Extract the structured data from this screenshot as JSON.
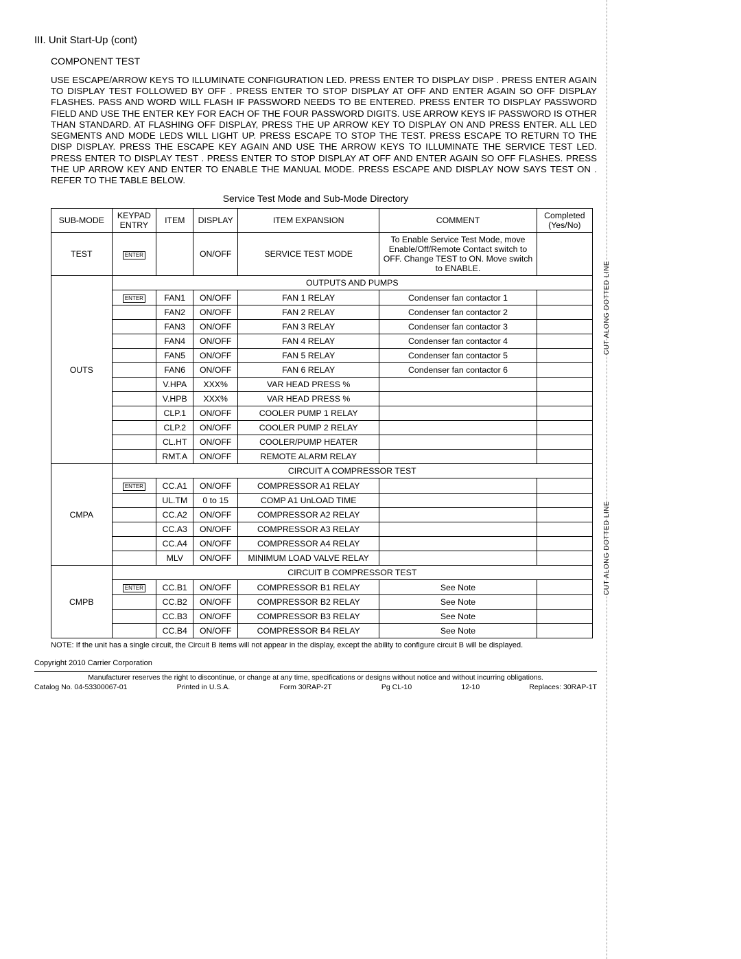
{
  "heading": "III.  Unit Start-Up (cont)",
  "subheading": "COMPONENT TEST",
  "instructions": "USE ESCAPE/ARROW KEYS TO ILLUMINATE CONFIGURATION LED. PRESS ENTER TO DISPLAY  DISP . PRESS ENTER AGAIN TO DISPLAY  TEST  FOLLOWED BY  OFF . PRESS ENTER TO STOP DISPLAY AT  OFF  AND ENTER AGAIN SO  OFF  DISPLAY FLASHES.  PASS  AND  WORD  WILL FLASH IF PASSWORD NEEDS TO BE ENTERED. PRESS ENTER TO DISPLAY PASSWORD FIELD AND USE THE ENTER KEY FOR EACH OF THE FOUR PASSWORD DIGITS. USE ARROW KEYS IF PASSWORD IS OTHER THAN STANDARD. AT FLASHING  OFF  DISPLAY, PRESS THE UP ARROW KEY TO DISPLAY  ON  AND PRESS ENTER. ALL LED SEGMENTS AND MODE LEDS WILL LIGHT UP. PRESS ESCAPE TO STOP THE TEST. PRESS ESCAPE TO RETURN TO THE  DISP  DISPLAY. PRESS THE ESCAPE KEY AGAIN AND USE THE ARROW KEYS TO ILLUMINATE THE SERVICE TEST LED. PRESS ENTER TO DISPLAY  TEST . PRESS ENTER TO STOP DISPLAY AT  OFF  AND ENTER AGAIN SO  OFF  FLASHES. PRESS THE UP ARROW KEY AND ENTER TO ENABLE THE MANUAL MODE. PRESS ESCAPE AND DISPLAY NOW SAYS  TEST   ON . REFER TO THE TABLE BELOW.",
  "table_caption": "Service Test Mode and Sub-Mode Directory",
  "headers": {
    "submode": "SUB-MODE",
    "keypad": "KEYPAD ENTRY",
    "item": "ITEM",
    "display": "DISPLAY",
    "expansion": "ITEM EXPANSION",
    "comment": "COMMENT",
    "completed": "Completed (Yes/No)"
  },
  "enter_label": "ENTER",
  "test_block": {
    "submode": "TEST",
    "display": "ON/OFF",
    "expansion": "SERVICE TEST MODE",
    "comment": "To Enable Service Test Mode, move Enable/Off/Remote Contact switch to OFF. Change TEST to ON. Move switch to ENABLE."
  },
  "outs": {
    "header": "OUTPUTS AND PUMPS",
    "submode": "OUTS",
    "rows": [
      {
        "keypad": true,
        "item": "FAN1",
        "display": "ON/OFF",
        "exp": "FAN 1 RELAY",
        "comment": "Condenser fan contactor 1"
      },
      {
        "keypad": false,
        "item": "FAN2",
        "display": "ON/OFF",
        "exp": "FAN 2 RELAY",
        "comment": "Condenser fan contactor 2"
      },
      {
        "keypad": false,
        "item": "FAN3",
        "display": "ON/OFF",
        "exp": "FAN 3 RELAY",
        "comment": "Condenser fan contactor 3"
      },
      {
        "keypad": false,
        "item": "FAN4",
        "display": "ON/OFF",
        "exp": "FAN 4 RELAY",
        "comment": "Condenser fan contactor 4"
      },
      {
        "keypad": false,
        "item": "FAN5",
        "display": "ON/OFF",
        "exp": "FAN 5 RELAY",
        "comment": "Condenser fan contactor 5"
      },
      {
        "keypad": false,
        "item": "FAN6",
        "display": "ON/OFF",
        "exp": "FAN 6 RELAY",
        "comment": "Condenser fan contactor 6"
      },
      {
        "keypad": false,
        "item": "V.HPA",
        "display": "XXX%",
        "exp": "VAR HEAD PRESS %",
        "comment": ""
      },
      {
        "keypad": false,
        "item": "V.HPB",
        "display": "XXX%",
        "exp": "VAR HEAD PRESS %",
        "comment": ""
      },
      {
        "keypad": false,
        "item": "CLP.1",
        "display": "ON/OFF",
        "exp": "COOLER PUMP 1 RELAY",
        "comment": ""
      },
      {
        "keypad": false,
        "item": "CLP.2",
        "display": "ON/OFF",
        "exp": "COOLER PUMP 2 RELAY",
        "comment": ""
      },
      {
        "keypad": false,
        "item": "CL.HT",
        "display": "ON/OFF",
        "exp": "COOLER/PUMP HEATER",
        "comment": ""
      },
      {
        "keypad": false,
        "item": "RMT.A",
        "display": "ON/OFF",
        "exp": "REMOTE ALARM RELAY",
        "comment": ""
      }
    ]
  },
  "cmpa": {
    "header": "CIRCUIT A COMPRESSOR TEST",
    "submode": "CMPA",
    "rows": [
      {
        "keypad": true,
        "item": "CC.A1",
        "display": "ON/OFF",
        "exp": "COMPRESSOR A1 RELAY",
        "comment": ""
      },
      {
        "keypad": false,
        "item": "UL.TM",
        "display": "0 to 15",
        "exp": "COMP A1 UnLOAD TIME",
        "comment": ""
      },
      {
        "keypad": false,
        "item": "CC.A2",
        "display": "ON/OFF",
        "exp": "COMPRESSOR A2 RELAY",
        "comment": ""
      },
      {
        "keypad": false,
        "item": "CC.A3",
        "display": "ON/OFF",
        "exp": "COMPRESSOR A3 RELAY",
        "comment": ""
      },
      {
        "keypad": false,
        "item": "CC.A4",
        "display": "ON/OFF",
        "exp": "COMPRESSOR A4 RELAY",
        "comment": ""
      },
      {
        "keypad": false,
        "item": "MLV",
        "display": "ON/OFF",
        "exp": "MINIMUM LOAD VALVE RELAY",
        "comment": ""
      }
    ]
  },
  "cmpb": {
    "header": "CIRCUIT B COMPRESSOR TEST",
    "submode": "CMPB",
    "rows": [
      {
        "keypad": true,
        "item": "CC.B1",
        "display": "ON/OFF",
        "exp": "COMPRESSOR B1 RELAY",
        "comment": "See Note"
      },
      {
        "keypad": false,
        "item": "CC.B2",
        "display": "ON/OFF",
        "exp": "COMPRESSOR B2 RELAY",
        "comment": "See Note"
      },
      {
        "keypad": false,
        "item": "CC.B3",
        "display": "ON/OFF",
        "exp": "COMPRESSOR B3 RELAY",
        "comment": "See Note"
      },
      {
        "keypad": false,
        "item": "CC.B4",
        "display": "ON/OFF",
        "exp": "COMPRESSOR B4 RELAY",
        "comment": "See Note"
      }
    ]
  },
  "table_note": "NOTE: If the unit has a single circuit, the Circuit B items will not appear in the display, except the ability to configure circuit B will be displayed.",
  "copyright": "Copyright 2010 Carrier Corporation",
  "footer": {
    "line1": "Manufacturer reserves the right to discontinue, or change at any time, specifications or designs without notice and without incurring obligations.",
    "catalog": "Catalog No. 04-53300067-01",
    "printed": "Printed in U.S.A.",
    "form": "Form 30RAP-2T",
    "page": "Pg CL-10",
    "date": "12-10",
    "replaces": "Replaces: 30RAP-1T"
  },
  "cut_label": "CUT ALONG DOTTED LINE"
}
